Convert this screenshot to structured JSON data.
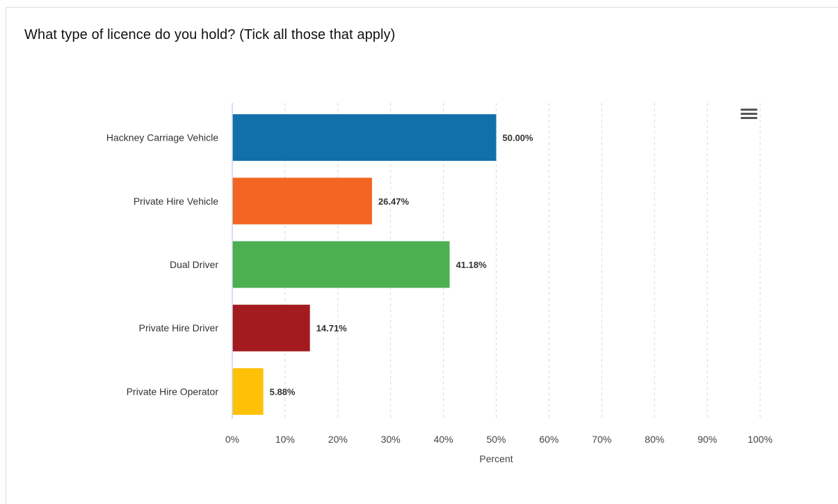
{
  "page": {
    "title": "What type of licence do you hold? (Tick all those that apply)",
    "menu_icon": "hamburger-menu-icon"
  },
  "chart_data": {
    "type": "bar",
    "orientation": "horizontal",
    "categories": [
      "Hackney Carriage Vehicle",
      "Private Hire Vehicle",
      "Dual Driver",
      "Private Hire Driver",
      "Private Hire Operator"
    ],
    "values": [
      50.0,
      26.47,
      41.18,
      14.71,
      5.88
    ],
    "value_labels": [
      "50.00%",
      "26.47%",
      "41.18%",
      "14.71%",
      "5.88%"
    ],
    "colors": [
      "#1170AA",
      "#F26522",
      "#4CAF50",
      "#A31B1F",
      "#FFC107"
    ],
    "xlabel": "Percent",
    "xlim": [
      0,
      100
    ],
    "xticks": [
      0,
      10,
      20,
      30,
      40,
      50,
      60,
      70,
      80,
      90,
      100
    ],
    "xtick_labels": [
      "0%",
      "10%",
      "20%",
      "30%",
      "40%",
      "50%",
      "60%",
      "70%",
      "80%",
      "90%",
      "100%"
    ],
    "grid": "vertical-dashed",
    "legend": "none"
  }
}
